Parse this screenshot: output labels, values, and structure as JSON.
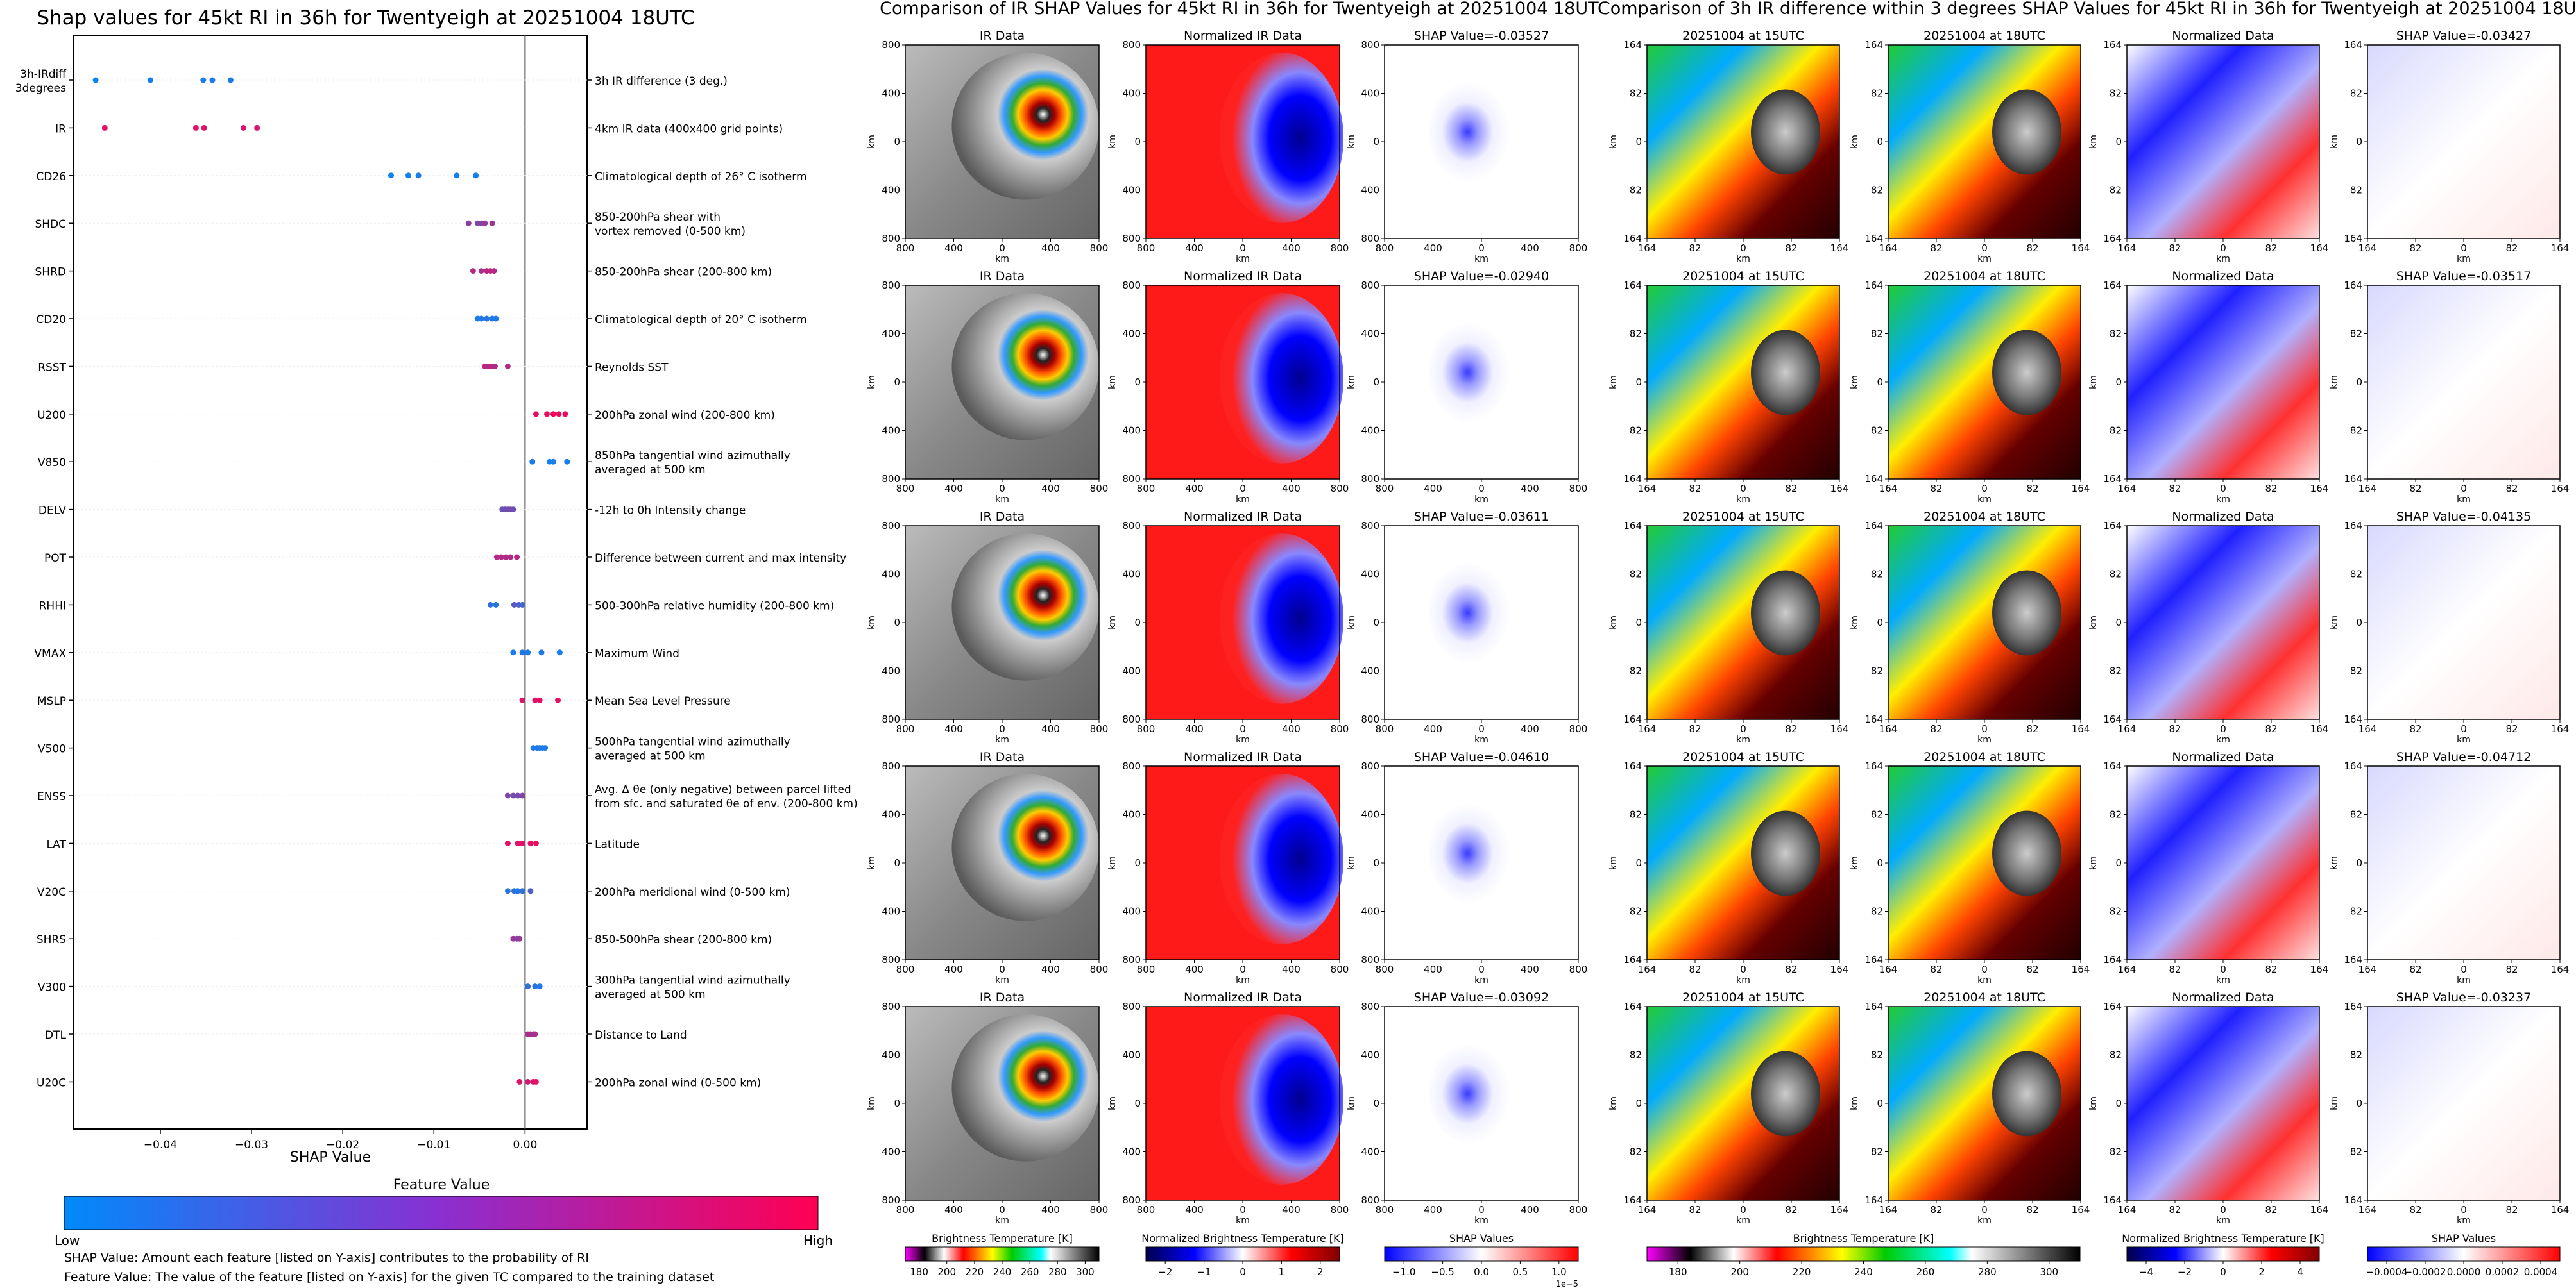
{
  "shap_panel": {
    "title": "Shap values for 45kt RI in 36h for Twentyeigh at 20251004 18UTC",
    "xlabel": "SHAP Value",
    "xticks": [
      "−0.04",
      "−0.03",
      "−0.02",
      "−0.01",
      "0.00"
    ],
    "colorbar_title": "Feature Value",
    "colorbar_low": "Low",
    "colorbar_high": "High",
    "note1": "SHAP Value: Amount each feature [listed on Y-axis] contributes to the probability of RI",
    "note2": "Feature Value: The value of the feature [listed on Y-axis] for the given TC compared to the training dataset",
    "features": [
      {
        "code": "3h-IRdiff\n3degrees",
        "desc": "3h IR difference (3 deg.)"
      },
      {
        "code": "IR",
        "desc": "4km IR data (400x400 grid points)"
      },
      {
        "code": "CD26",
        "desc": "Climatological depth of 26° C isotherm"
      },
      {
        "code": "SHDC",
        "desc": "850-200hPa shear with\nvortex removed (0-500 km)"
      },
      {
        "code": "SHRD",
        "desc": "850-200hPa shear (200-800 km)"
      },
      {
        "code": "CD20",
        "desc": "Climatological depth of 20° C isotherm"
      },
      {
        "code": "RSST",
        "desc": "Reynolds SST"
      },
      {
        "code": "U200",
        "desc": "200hPa zonal wind (200-800 km)"
      },
      {
        "code": "V850",
        "desc": "850hPa tangential wind azimuthally\naveraged at 500 km"
      },
      {
        "code": "DELV",
        "desc": "-12h to 0h Intensity change"
      },
      {
        "code": "POT",
        "desc": "Difference between current and max intensity"
      },
      {
        "code": "RHHI",
        "desc": "500-300hPa relative humidity (200-800 km)"
      },
      {
        "code": "VMAX",
        "desc": "Maximum Wind"
      },
      {
        "code": "MSLP",
        "desc": "Mean Sea Level Pressure"
      },
      {
        "code": "V500",
        "desc": "500hPa tangential wind azimuthally\naveraged at 500 km"
      },
      {
        "code": "ENSS",
        "desc": "Avg. Δ θe (only negative) between parcel lifted\nfrom sfc. and saturated θe of env. (200-800 km)"
      },
      {
        "code": "LAT",
        "desc": "Latitude"
      },
      {
        "code": "V20C",
        "desc": "200hPa meridional wind (0-500 km)"
      },
      {
        "code": "SHRS",
        "desc": "850-500hPa shear (200-800 km)"
      },
      {
        "code": "V300",
        "desc": "300hPa tangential wind azimuthally\naveraged at 500 km"
      },
      {
        "code": "DTL",
        "desc": "Distance to Land"
      },
      {
        "code": "U20C",
        "desc": "200hPa zonal wind (0-500 km)"
      }
    ]
  },
  "ir_panel": {
    "title": "Comparison of IR SHAP Values for 45kt RI in 36h for Twentyeigh at 20251004 18UTC",
    "col_titles": [
      "IR Data",
      "Normalized IR Data"
    ],
    "shap_titles": [
      "SHAP Value=-0.03527",
      "SHAP Value=-0.02940",
      "SHAP Value=-0.03611",
      "SHAP Value=-0.04610",
      "SHAP Value=-0.03092"
    ],
    "yticks": [
      "800",
      "400",
      "0",
      "400",
      "800"
    ],
    "xticks": [
      "800",
      "400",
      "0",
      "400",
      "800"
    ],
    "axis_label": "km",
    "cbars": [
      {
        "title": "Brightness Temperature [K]",
        "ticks": [
          "180",
          "200",
          "220",
          "240",
          "260",
          "280",
          "300"
        ]
      },
      {
        "title": "Normalized Brightness Temperature [K]",
        "ticks": [
          "−2",
          "−1",
          "0",
          "1",
          "2"
        ]
      },
      {
        "title": "SHAP Values",
        "ticks": [
          "−1.0",
          "−0.5",
          "0.0",
          "0.5",
          "1.0"
        ],
        "offset": "1e−5"
      }
    ]
  },
  "diff_panel": {
    "title": "Comparison of 3h IR difference within 3 degrees SHAP Values for 45kt RI in 36h for Twentyeigh at 20251004 18UTC",
    "col_titles": [
      "20251004 at 15UTC",
      "20251004 at 18UTC",
      "Normalized Data"
    ],
    "shap_titles": [
      "SHAP Value=-0.03427",
      "SHAP Value=-0.03517",
      "SHAP Value=-0.04135",
      "SHAP Value=-0.04712",
      "SHAP Value=-0.03237"
    ],
    "yticks": [
      "164",
      "82",
      "0",
      "82",
      "164"
    ],
    "xticks": [
      "164",
      "82",
      "0",
      "82",
      "164"
    ],
    "axis_label": "km",
    "cbars": [
      {
        "title": "Brightness Temperature [K]",
        "ticks": [
          "180",
          "200",
          "220",
          "240",
          "260",
          "280",
          "300"
        ]
      },
      {
        "title": "Normalized Brightness Temperature [K]",
        "ticks": [
          "−4",
          "−2",
          "0",
          "2",
          "4"
        ]
      },
      {
        "title": "SHAP Values",
        "ticks": [
          "−0.0004",
          "−0.0002",
          "0.0000",
          "0.0002",
          "0.0004"
        ]
      }
    ]
  },
  "chart_data": {
    "type": "scatter",
    "title": "Shap values for 45kt RI in 36h for Twentyeigh at 20251004 18UTC",
    "xlabel": "SHAP Value",
    "ylabel": "",
    "xlim": [
      -0.0495,
      0.0068
    ],
    "categories": [
      "3h-IRdiff 3degrees",
      "IR",
      "CD26",
      "SHDC",
      "SHRD",
      "CD20",
      "RSST",
      "U200",
      "V850",
      "DELV",
      "POT",
      "RHHI",
      "VMAX",
      "MSLP",
      "V500",
      "ENSS",
      "LAT",
      "V20C",
      "SHRS",
      "V300",
      "DTL",
      "U20C"
    ],
    "colorscale": [
      "#008afb",
      "#ff0052"
    ],
    "points": [
      [
        [
          -0.0471,
          0.05
        ],
        [
          -0.0411,
          0.07
        ],
        [
          -0.0353,
          0.1
        ],
        [
          -0.0343,
          0.12
        ],
        [
          -0.0323,
          0.1
        ]
      ],
      [
        [
          -0.0461,
          0.9
        ],
        [
          -0.0361,
          0.88
        ],
        [
          -0.0352,
          0.86
        ],
        [
          -0.0309,
          0.85
        ],
        [
          -0.0294,
          0.84
        ]
      ],
      [
        [
          -0.0147,
          0.05
        ],
        [
          -0.0128,
          0.08
        ],
        [
          -0.0117,
          0.1
        ],
        [
          -0.0075,
          0.07
        ],
        [
          -0.0054,
          0.08
        ]
      ],
      [
        [
          -0.0062,
          0.55
        ],
        [
          -0.0052,
          0.5
        ],
        [
          -0.0048,
          0.52
        ],
        [
          -0.0044,
          0.58
        ],
        [
          -0.0036,
          0.6
        ]
      ],
      [
        [
          -0.0057,
          0.7
        ],
        [
          -0.0048,
          0.65
        ],
        [
          -0.0042,
          0.75
        ],
        [
          -0.0038,
          0.72
        ],
        [
          -0.0034,
          0.7
        ]
      ],
      [
        [
          -0.0052,
          0.1
        ],
        [
          -0.0048,
          0.12
        ],
        [
          -0.0042,
          0.15
        ],
        [
          -0.0036,
          0.1
        ],
        [
          -0.0032,
          0.12
        ]
      ],
      [
        [
          -0.0044,
          0.75
        ],
        [
          -0.0041,
          0.7
        ],
        [
          -0.0037,
          0.72
        ],
        [
          -0.0033,
          0.68
        ],
        [
          -0.0019,
          0.7
        ]
      ],
      [
        [
          0.0012,
          0.9
        ],
        [
          0.0024,
          0.92
        ],
        [
          0.0031,
          0.95
        ],
        [
          0.0037,
          0.9
        ],
        [
          0.0044,
          0.93
        ]
      ],
      [
        [
          0.0008,
          0.1
        ],
        [
          0.0027,
          0.05
        ],
        [
          0.0031,
          0.08
        ],
        [
          0.0046,
          0.1
        ]
      ],
      [
        [
          -0.0025,
          0.4
        ],
        [
          -0.0022,
          0.45
        ],
        [
          -0.0019,
          0.42
        ],
        [
          -0.0016,
          0.48
        ],
        [
          -0.0013,
          0.42
        ]
      ],
      [
        [
          -0.0031,
          0.7
        ],
        [
          -0.0026,
          0.72
        ],
        [
          -0.0021,
          0.68
        ],
        [
          -0.0016,
          0.7
        ],
        [
          -0.0009,
          0.72
        ]
      ],
      [
        [
          -0.0038,
          0.2
        ],
        [
          -0.0032,
          0.15
        ],
        [
          -0.0012,
          0.35
        ],
        [
          -0.0007,
          0.3
        ],
        [
          -0.0003,
          0.25
        ]
      ],
      [
        [
          -0.0013,
          0.1
        ],
        [
          -0.0003,
          0.15
        ],
        [
          0.0003,
          0.1
        ],
        [
          0.0018,
          0.12
        ],
        [
          0.0038,
          0.08
        ]
      ],
      [
        [
          -0.0003,
          0.85
        ],
        [
          0.0011,
          0.88
        ],
        [
          0.0016,
          0.9
        ],
        [
          0.0036,
          0.92
        ]
      ],
      [
        [
          0.0009,
          0.1
        ],
        [
          0.0013,
          0.12
        ],
        [
          0.0016,
          0.1
        ],
        [
          0.0019,
          0.12
        ],
        [
          0.0022,
          0.1
        ]
      ],
      [
        [
          -0.0019,
          0.5
        ],
        [
          -0.0013,
          0.45
        ],
        [
          -0.0008,
          0.48
        ],
        [
          -0.0003,
          0.5
        ]
      ],
      [
        [
          -0.0019,
          0.9
        ],
        [
          -0.0008,
          0.85
        ],
        [
          -0.0003,
          0.88
        ],
        [
          0.0006,
          0.9
        ],
        [
          0.0012,
          0.92
        ]
      ],
      [
        [
          -0.0019,
          0.15
        ],
        [
          -0.0012,
          0.2
        ],
        [
          -0.0008,
          0.12
        ],
        [
          -0.0003,
          0.18
        ],
        [
          0.0006,
          0.3
        ]
      ],
      [
        [
          -0.0013,
          0.6
        ],
        [
          -0.0009,
          0.55
        ],
        [
          -0.0006,
          0.58
        ]
      ],
      [
        [
          0.0003,
          0.2
        ],
        [
          0.0011,
          0.15
        ],
        [
          0.0016,
          0.12
        ]
      ],
      [
        [
          0.0003,
          0.65
        ],
        [
          0.0006,
          0.68
        ],
        [
          0.0009,
          0.62
        ],
        [
          0.0011,
          0.66
        ]
      ],
      [
        [
          -0.0006,
          0.85
        ],
        [
          0.0003,
          0.8
        ],
        [
          0.0009,
          0.9
        ],
        [
          0.0012,
          0.88
        ]
      ]
    ]
  }
}
